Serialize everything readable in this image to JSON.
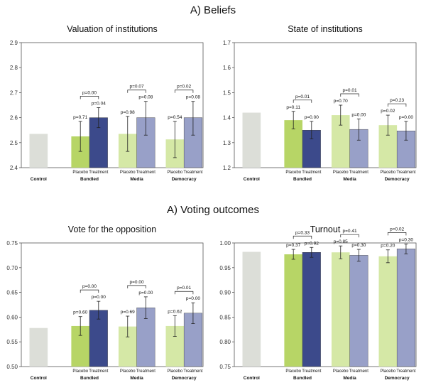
{
  "titles": {
    "beliefs": "A) Beliefs",
    "voting": "A) Voting outcomes"
  },
  "colors": {
    "control": "#dcded8",
    "bundled_placebo": "#b7d566",
    "bundled_treatment": "#3c4a8b",
    "other_placebo": "#d5e8a6",
    "other_treatment": "#98a0c8",
    "frame": "#555555",
    "error": "#222222"
  },
  "chart_data": [
    {
      "id": "valuation",
      "type": "bar",
      "title": "Valuation of institutions",
      "ylim": [
        2.4,
        2.9
      ],
      "yticks": [
        2.4,
        2.5,
        2.6,
        2.7,
        2.8,
        2.9
      ],
      "tick_format": 1,
      "control": {
        "label": "Control",
        "value": 2.535
      },
      "groups": [
        {
          "label": "Bundled",
          "sub_labels": [
            "Placebo",
            "Treatment"
          ],
          "values": [
            2.525,
            2.6
          ],
          "errors": [
            [
              2.465,
              2.585
            ],
            [
              2.56,
              2.64
            ]
          ],
          "pvalues": [
            "p=0.71",
            "p=0.04"
          ],
          "diff_p": "p=0.00"
        },
        {
          "label": "Media",
          "sub_labels": [
            "Placebo",
            "Treatment"
          ],
          "values": [
            2.535,
            2.6
          ],
          "errors": [
            [
              2.465,
              2.605
            ],
            [
              2.53,
              2.665
            ]
          ],
          "pvalues": [
            "p=0.98",
            "p=0.08"
          ],
          "diff_p": "p=0.07"
        },
        {
          "label": "Democracy",
          "sub_labels": [
            "Placebo",
            "Treatment"
          ],
          "values": [
            2.513,
            2.6
          ],
          "errors": [
            [
              2.44,
              2.585
            ],
            [
              2.53,
              2.665
            ]
          ],
          "pvalues": [
            "p=0.54",
            "p=0.08"
          ],
          "diff_p": "p=0.02"
        }
      ]
    },
    {
      "id": "state",
      "type": "bar",
      "title": "State of institutions",
      "ylim": [
        1.2,
        1.7
      ],
      "yticks": [
        1.2,
        1.3,
        1.4,
        1.5,
        1.6,
        1.7
      ],
      "tick_format": 1,
      "control": {
        "label": "Control",
        "value": 1.42
      },
      "groups": [
        {
          "label": "Bundled",
          "sub_labels": [
            "Placebo",
            "Treatment"
          ],
          "values": [
            1.39,
            1.35
          ],
          "errors": [
            [
              1.355,
              1.425
            ],
            [
              1.315,
              1.385
            ]
          ],
          "pvalues": [
            "p=0.11",
            "p=0.00"
          ],
          "diff_p": "p=0.01"
        },
        {
          "label": "Media",
          "sub_labels": [
            "Placebo",
            "Treatment"
          ],
          "values": [
            1.41,
            1.353
          ],
          "errors": [
            [
              1.37,
              1.45
            ],
            [
              1.31,
              1.395
            ]
          ],
          "pvalues": [
            "p=0.70",
            "p=0.00"
          ],
          "diff_p": "p=0.01"
        },
        {
          "label": "Democracy",
          "sub_labels": [
            "Placebo",
            "Treatment"
          ],
          "values": [
            1.37,
            1.347
          ],
          "errors": [
            [
              1.33,
              1.41
            ],
            [
              1.31,
              1.385
            ]
          ],
          "pvalues": [
            "p=0.02",
            "p=0.00"
          ],
          "diff_p": "p=0.23"
        }
      ]
    },
    {
      "id": "opposition",
      "type": "bar",
      "title": "Vote for the opposition",
      "ylim": [
        0.5,
        0.75
      ],
      "yticks": [
        0.5,
        0.55,
        0.6,
        0.65,
        0.7,
        0.75
      ],
      "tick_format": 2,
      "control": {
        "label": "Control",
        "value": 0.578
      },
      "groups": [
        {
          "label": "Bundled",
          "sub_labels": [
            "Placebo",
            "Treatment"
          ],
          "values": [
            0.582,
            0.614
          ],
          "errors": [
            [
              0.563,
              0.601
            ],
            [
              0.596,
              0.632
            ]
          ],
          "pvalues": [
            "p=0.60",
            "p=0.00"
          ],
          "diff_p": "p=0.00"
        },
        {
          "label": "Media",
          "sub_labels": [
            "Placebo",
            "Treatment"
          ],
          "values": [
            0.581,
            0.619
          ],
          "errors": [
            [
              0.56,
              0.602
            ],
            [
              0.597,
              0.641
            ]
          ],
          "pvalues": [
            "p=0.69",
            "p=0.00"
          ],
          "diff_p": "p=0.00"
        },
        {
          "label": "Democracy",
          "sub_labels": [
            "Placebo",
            "Treatment"
          ],
          "values": [
            0.582,
            0.608
          ],
          "errors": [
            [
              0.561,
              0.603
            ],
            [
              0.587,
              0.629
            ]
          ],
          "pvalues": [
            "p=0.62",
            "p=0.00"
          ],
          "diff_p": "p=0.01"
        }
      ]
    },
    {
      "id": "turnout",
      "type": "bar",
      "title": "Turnout",
      "ylim": [
        0.75,
        1.0
      ],
      "yticks": [
        0.75,
        0.8,
        0.85,
        0.9,
        0.95,
        1.0
      ],
      "tick_format": 2,
      "control": {
        "label": "Control",
        "value": 0.982
      },
      "groups": [
        {
          "label": "Bundled",
          "sub_labels": [
            "Placebo",
            "Treatment"
          ],
          "values": [
            0.977,
            0.981
          ],
          "errors": [
            [
              0.967,
              0.987
            ],
            [
              0.971,
              0.991
            ]
          ],
          "pvalues": [
            "p=0.37",
            "p=0.92"
          ],
          "diff_p": "p=0.33"
        },
        {
          "label": "Media",
          "sub_labels": [
            "Placebo",
            "Treatment"
          ],
          "values": [
            0.981,
            0.975
          ],
          "errors": [
            [
              0.968,
              0.994
            ],
            [
              0.963,
              0.987
            ]
          ],
          "pvalues": [
            "p=0.85",
            "p=0.30"
          ],
          "diff_p": "p=0.41"
        },
        {
          "label": "Democracy",
          "sub_labels": [
            "Placebo",
            "Treatment"
          ],
          "values": [
            0.973,
            0.988
          ],
          "errors": [
            [
              0.96,
              0.986
            ],
            [
              0.978,
              0.998
            ]
          ],
          "pvalues": [
            "p=0.20",
            "p=0.30"
          ],
          "diff_p": "p=0.02"
        }
      ]
    }
  ]
}
